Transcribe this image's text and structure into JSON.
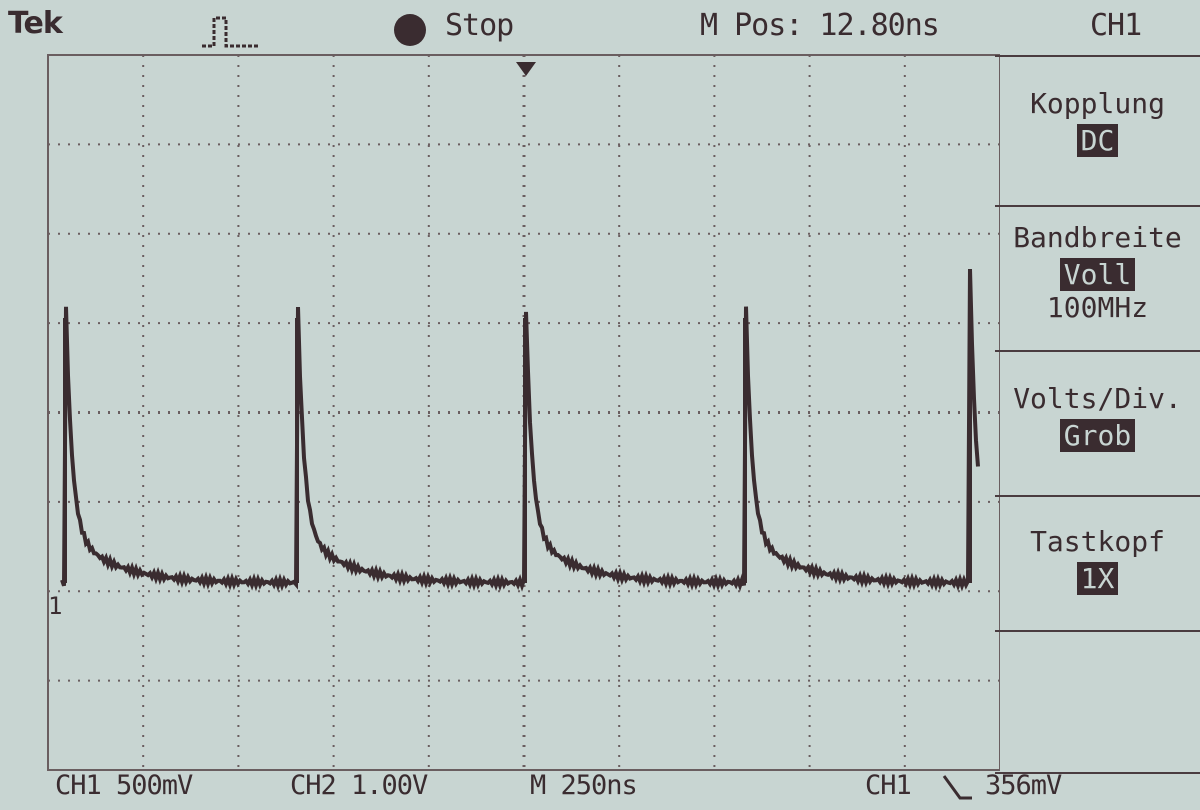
{
  "header": {
    "brand": "Tek",
    "status": "Stop",
    "position": "M Pos: 12.80ns",
    "channel": "CH1"
  },
  "menu": [
    {
      "label": "Kopplung",
      "value": "DC"
    },
    {
      "label": "Bandbreite",
      "value": "Voll",
      "note": "100MHz"
    },
    {
      "label": "Volts/Div.",
      "value": "Grob"
    },
    {
      "label": "Tastkopf",
      "value": "1X"
    }
  ],
  "marker": "1",
  "footer": {
    "ch1_scale": "CH1 500mV",
    "ch2_scale": "CH2 1.00V",
    "timebase": "M 250ns",
    "trigger_source": "CH1",
    "trigger_level": "356mV"
  }
}
